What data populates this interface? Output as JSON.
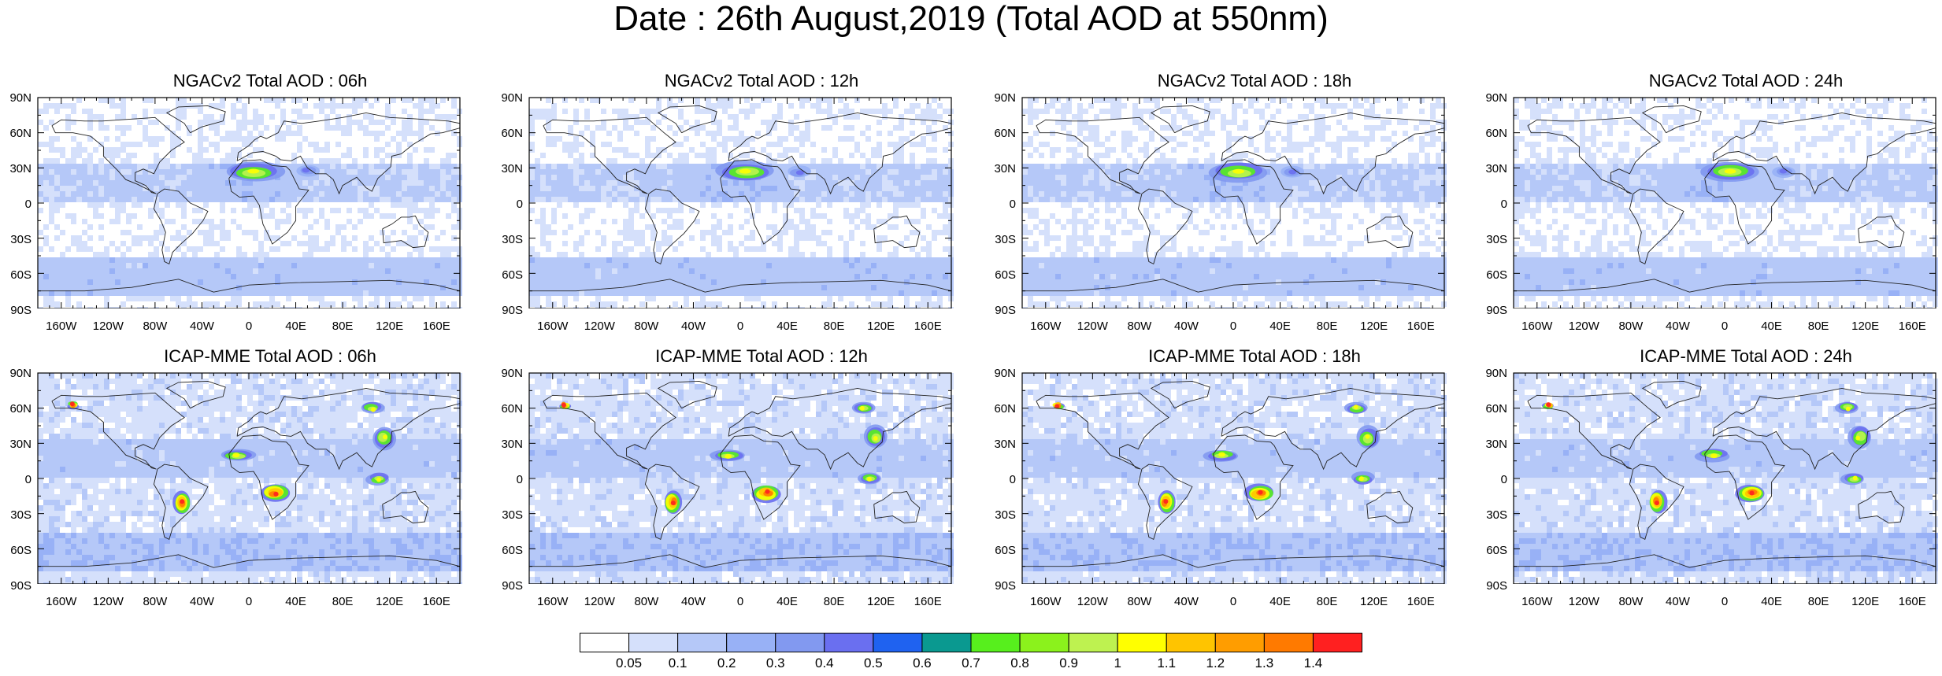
{
  "title": "Date : 26th August,2019 (Total AOD at 550nm)",
  "lat_labels": [
    "90N",
    "60N",
    "30N",
    "0",
    "30S",
    "60S",
    "90S"
  ],
  "lon_labels": [
    "160W",
    "120W",
    "80W",
    "40W",
    "0",
    "40E",
    "80E",
    "120E",
    "160E"
  ],
  "panels": [
    {
      "title": "NGACv2 Total AOD : 06h",
      "model": "NGACv2",
      "hour": "06h"
    },
    {
      "title": "NGACv2 Total AOD : 12h",
      "model": "NGACv2",
      "hour": "12h"
    },
    {
      "title": "NGACv2 Total AOD : 18h",
      "model": "NGACv2",
      "hour": "18h"
    },
    {
      "title": "NGACv2 Total AOD : 24h",
      "model": "NGACv2",
      "hour": "24h"
    },
    {
      "title": "ICAP-MME Total AOD : 06h",
      "model": "ICAP-MME",
      "hour": "06h"
    },
    {
      "title": "ICAP-MME Total AOD : 12h",
      "model": "ICAP-MME",
      "hour": "12h"
    },
    {
      "title": "ICAP-MME Total AOD : 18h",
      "model": "ICAP-MME",
      "hour": "18h"
    },
    {
      "title": "ICAP-MME Total AOD : 24h",
      "model": "ICAP-MME",
      "hour": "24h"
    }
  ],
  "colorbar": {
    "labels": [
      "0.05",
      "0.1",
      "0.2",
      "0.3",
      "0.4",
      "0.5",
      "0.6",
      "0.7",
      "0.8",
      "0.9",
      "1",
      "1.1",
      "1.2",
      "1.3",
      "1.4"
    ],
    "colors": [
      "#ffffff",
      "#d5e0fb",
      "#b5c8f8",
      "#98b1f6",
      "#8299f0",
      "#6a6ff0",
      "#1f62f0",
      "#0a9990",
      "#57ef1d",
      "#8bf21c",
      "#bef250",
      "#ffff00",
      "#ffc400",
      "#ff9d00",
      "#ff7a00",
      "#ff2020"
    ]
  },
  "hotspots": {
    "ngac": [
      {
        "name": "sahara-dust",
        "lon": [
          -20,
          30
        ],
        "lat": [
          18,
          35
        ],
        "level": "high"
      },
      {
        "name": "middle-east-dust",
        "lon": [
          40,
          60
        ],
        "lat": [
          22,
          32
        ],
        "level": "moderate"
      }
    ],
    "icap": [
      {
        "name": "sahara-dust",
        "lon": [
          -25,
          5
        ],
        "lat": [
          15,
          25
        ],
        "level": "high"
      },
      {
        "name": "southern-africa-fires",
        "lon": [
          10,
          35
        ],
        "lat": [
          -20,
          -5
        ],
        "level": "very-high"
      },
      {
        "name": "south-america-fires",
        "lon": [
          -65,
          -50
        ],
        "lat": [
          -30,
          -10
        ],
        "level": "very-high"
      },
      {
        "name": "indonesia-fires",
        "lon": [
          100,
          120
        ],
        "lat": [
          -5,
          5
        ],
        "level": "high"
      },
      {
        "name": "china-pollution",
        "lon": [
          105,
          125
        ],
        "lat": [
          25,
          45
        ],
        "level": "high"
      },
      {
        "name": "siberia-fires",
        "lon": [
          95,
          115
        ],
        "lat": [
          55,
          65
        ],
        "level": "high"
      },
      {
        "name": "alaska-fires",
        "lon": [
          -155,
          -145
        ],
        "lat": [
          60,
          65
        ],
        "level": "very-high"
      }
    ]
  }
}
